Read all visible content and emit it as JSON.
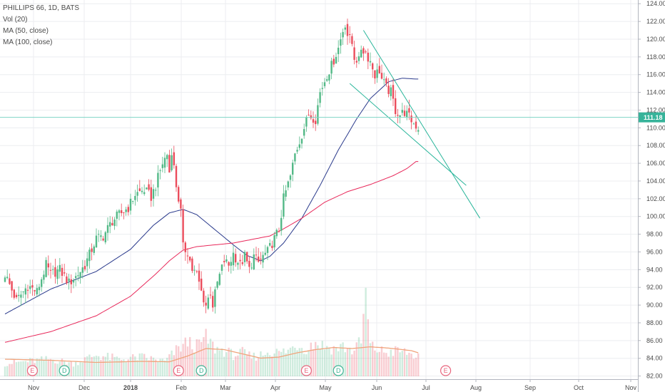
{
  "legend": {
    "title": "PHILLIPS 66, 1D, BATS",
    "volume": "Vol (20)",
    "ma50": "MA (50, close)",
    "ma100": "MA (100, close)"
  },
  "colors": {
    "up": "#53b987",
    "down": "#eb4d5c",
    "ma50": "#2a3a8c",
    "ma100": "#e8285a",
    "volume_ma": "#f0a47c",
    "trend_lines": "#29b59a",
    "price_line": "#7fd4c4",
    "event_e": "#e8647c",
    "event_d": "#3fb394",
    "grid": "#ecedf0",
    "axis_text": "#4a4a4a"
  },
  "price_badge": "111.18",
  "chart_data": {
    "type": "candlestick",
    "title": "PHILLIPS 66, 1D, BATS",
    "ylim": [
      81,
      124.5
    ],
    "y_ticks": [
      "82.00",
      "84.00",
      "86.00",
      "88.00",
      "90.00",
      "92.00",
      "94.00",
      "96.00",
      "98.00",
      "100.00",
      "102.00",
      "104.00",
      "106.00",
      "108.00",
      "110.00",
      "112.00",
      "114.00",
      "116.00",
      "118.00",
      "120.00",
      "122.00",
      "124.00"
    ],
    "x_ticks": [
      "Nov",
      "Dec",
      "2018",
      "Feb",
      "Mar",
      "Apr",
      "May",
      "Jun",
      "Jul",
      "Aug",
      "Sep",
      "Oct",
      "Nov"
    ],
    "current_price": 111.18,
    "grid": true,
    "price_keypoints": [
      [
        0,
        93.5
      ],
      [
        5,
        90.5
      ],
      [
        10,
        92.2
      ],
      [
        14,
        91.5
      ],
      [
        18,
        94.5
      ],
      [
        20,
        93.5
      ],
      [
        24,
        94.0
      ],
      [
        28,
        92.5
      ],
      [
        31,
        93.2
      ],
      [
        35,
        94.5
      ],
      [
        40,
        97.5
      ],
      [
        43,
        97.8
      ],
      [
        47,
        99.5
      ],
      [
        50,
        100.2
      ],
      [
        54,
        101.0
      ],
      [
        57,
        102.5
      ],
      [
        61,
        103.0
      ],
      [
        64,
        102.2
      ],
      [
        66,
        103.5
      ],
      [
        69,
        106.0
      ],
      [
        71,
        107.0
      ],
      [
        72,
        105.0
      ],
      [
        73,
        107.5
      ],
      [
        74,
        105.5
      ],
      [
        75,
        103.5
      ],
      [
        77,
        100.5
      ],
      [
        78,
        96.5
      ],
      [
        80,
        96.0
      ],
      [
        82,
        94.0
      ],
      [
        84,
        93.5
      ],
      [
        86,
        91.5
      ],
      [
        88,
        90.0
      ],
      [
        90,
        91.5
      ],
      [
        91,
        90.0
      ],
      [
        93,
        92.5
      ],
      [
        96,
        95.0
      ],
      [
        98,
        94.5
      ],
      [
        100,
        95.8
      ],
      [
        103,
        94.5
      ],
      [
        105,
        95.5
      ],
      [
        107,
        94.0
      ],
      [
        109,
        95.5
      ],
      [
        111,
        94.8
      ],
      [
        113,
        95.5
      ],
      [
        115,
        96.0
      ],
      [
        117,
        97.0
      ],
      [
        120,
        98.5
      ],
      [
        122,
        102.0
      ],
      [
        125,
        104.5
      ],
      [
        127,
        107.0
      ],
      [
        129,
        108.5
      ],
      [
        131,
        110.0
      ],
      [
        133,
        111.5
      ],
      [
        136,
        111.0
      ],
      [
        138,
        114.0
      ],
      [
        141,
        116.0
      ],
      [
        143,
        117.0
      ],
      [
        146,
        119.0
      ],
      [
        148,
        121.0
      ],
      [
        149,
        121.8
      ],
      [
        150,
        120.5
      ],
      [
        152,
        119.5
      ],
      [
        153,
        118.0
      ],
      [
        155,
        117.5
      ],
      [
        156,
        119.0
      ],
      [
        158,
        118.5
      ],
      [
        160,
        117.5
      ],
      [
        162,
        116.0
      ],
      [
        164,
        116.5
      ],
      [
        165,
        115.5
      ],
      [
        167,
        114.5
      ],
      [
        169,
        114.0
      ],
      [
        171,
        112.0
      ],
      [
        173,
        111.5
      ],
      [
        175,
        111.8
      ],
      [
        177,
        111.2
      ],
      [
        179,
        110.5
      ],
      [
        181,
        110.0
      ]
    ],
    "volume_ylim": [
      0,
      40
    ],
    "volume_keypoints": [
      [
        0,
        6
      ],
      [
        10,
        7
      ],
      [
        20,
        8
      ],
      [
        30,
        6
      ],
      [
        40,
        10
      ],
      [
        50,
        8
      ],
      [
        60,
        9
      ],
      [
        70,
        7
      ],
      [
        76,
        13
      ],
      [
        80,
        16
      ],
      [
        84,
        14
      ],
      [
        88,
        18
      ],
      [
        92,
        13
      ],
      [
        96,
        12
      ],
      [
        100,
        10
      ],
      [
        104,
        11
      ],
      [
        108,
        9
      ],
      [
        112,
        10
      ],
      [
        116,
        12
      ],
      [
        120,
        11
      ],
      [
        124,
        12
      ],
      [
        128,
        15
      ],
      [
        132,
        13
      ],
      [
        136,
        16
      ],
      [
        140,
        14
      ],
      [
        144,
        13
      ],
      [
        148,
        14
      ],
      [
        152,
        12
      ],
      [
        156,
        16
      ],
      [
        158,
        38
      ],
      [
        160,
        14
      ],
      [
        164,
        12
      ],
      [
        168,
        11
      ],
      [
        172,
        12
      ],
      [
        176,
        11
      ],
      [
        181,
        9
      ]
    ],
    "volume_ma_keypoints": [
      [
        0,
        8
      ],
      [
        20,
        7.5
      ],
      [
        40,
        6.5
      ],
      [
        60,
        7.0
      ],
      [
        72,
        6.8
      ],
      [
        80,
        9.5
      ],
      [
        88,
        13.0
      ],
      [
        96,
        12.5
      ],
      [
        104,
        10.5
      ],
      [
        112,
        8.5
      ],
      [
        120,
        9.0
      ],
      [
        128,
        11.0
      ],
      [
        136,
        12.5
      ],
      [
        144,
        13.5
      ],
      [
        152,
        13.0
      ],
      [
        160,
        13.8
      ],
      [
        168,
        13.2
      ],
      [
        174,
        12.5
      ],
      [
        178,
        12.0
      ],
      [
        181,
        11.0
      ]
    ],
    "series": [
      {
        "name": "MA (50, close)",
        "points": [
          [
            0,
            89.0
          ],
          [
            20,
            91.8
          ],
          [
            40,
            93.8
          ],
          [
            55,
            96.3
          ],
          [
            65,
            99.0
          ],
          [
            72,
            100.4
          ],
          [
            78,
            100.8
          ],
          [
            84,
            100.2
          ],
          [
            92,
            98.5
          ],
          [
            100,
            96.8
          ],
          [
            106,
            95.6
          ],
          [
            112,
            95.0
          ],
          [
            116,
            95.5
          ],
          [
            122,
            97.0
          ],
          [
            130,
            99.8
          ],
          [
            138,
            103.5
          ],
          [
            146,
            107.5
          ],
          [
            154,
            111.0
          ],
          [
            160,
            113.3
          ],
          [
            168,
            115.2
          ],
          [
            174,
            115.6
          ],
          [
            180,
            115.5
          ]
        ]
      },
      {
        "name": "MA (100, close)",
        "points": [
          [
            0,
            85.8
          ],
          [
            20,
            87.0
          ],
          [
            40,
            88.8
          ],
          [
            55,
            91.0
          ],
          [
            66,
            93.5
          ],
          [
            72,
            95.0
          ],
          [
            78,
            96.2
          ],
          [
            84,
            96.6
          ],
          [
            92,
            96.8
          ],
          [
            100,
            97.0
          ],
          [
            108,
            97.4
          ],
          [
            116,
            97.8
          ],
          [
            122,
            98.6
          ],
          [
            130,
            99.8
          ],
          [
            140,
            101.6
          ],
          [
            150,
            102.8
          ],
          [
            160,
            103.6
          ],
          [
            170,
            104.6
          ],
          [
            176,
            105.4
          ],
          [
            180,
            106.2
          ]
        ]
      }
    ],
    "trend_lines": [
      [
        [
          157,
          121.0
        ],
        [
          208,
          99.8
        ]
      ],
      [
        [
          151,
          115.0
        ],
        [
          202,
          103.5
        ]
      ]
    ],
    "events": [
      {
        "label": "E",
        "kind": "earnings",
        "bar": 12
      },
      {
        "label": "D",
        "kind": "dividend",
        "bar": 26
      },
      {
        "label": "E",
        "kind": "earnings",
        "bar": 76
      },
      {
        "label": "D",
        "kind": "dividend",
        "bar": 86
      },
      {
        "label": "E",
        "kind": "earnings",
        "bar": 132
      },
      {
        "label": "D",
        "kind": "dividend",
        "bar": 146
      },
      {
        "label": "E",
        "kind": "earnings",
        "bar": 193
      }
    ]
  }
}
